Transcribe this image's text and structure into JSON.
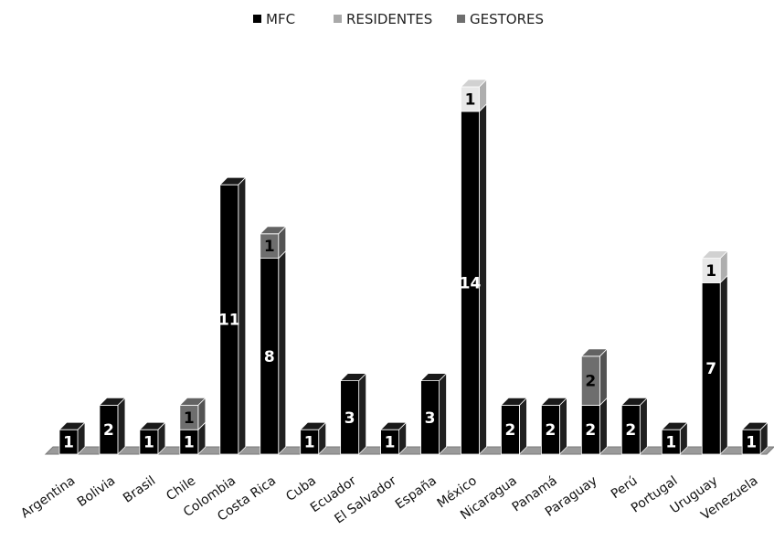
{
  "chart_data": {
    "type": "bar",
    "stacked": true,
    "style": "3d-column",
    "categories": [
      "Argentina",
      "Bolivia",
      "Brasil",
      "Chile",
      "Colombia",
      "Costa Rica",
      "Cuba",
      "Ecuador",
      "El Salvador",
      "España",
      "México",
      "Nicaragua",
      "Panamá",
      "Paraguay",
      "Perú",
      "Portugal",
      "Uruguay",
      "Venezuela"
    ],
    "series": [
      {
        "name": "MFC",
        "color": "#000000",
        "label_color": "#ffffff",
        "values": [
          1,
          2,
          1,
          1,
          11,
          8,
          1,
          3,
          1,
          3,
          14,
          2,
          2,
          2,
          2,
          1,
          7,
          1
        ]
      },
      {
        "name": "RESIDENTES",
        "color": "#e8e8e8",
        "label_color": "#000000",
        "values": [
          0,
          0,
          0,
          0,
          0,
          0,
          0,
          0,
          0,
          0,
          1,
          0,
          0,
          0,
          0,
          0,
          1,
          0
        ]
      },
      {
        "name": "GESTORES",
        "color": "#6e6e6e",
        "label_color": "#000000",
        "values": [
          0,
          0,
          0,
          1,
          0,
          1,
          0,
          0,
          0,
          0,
          0,
          0,
          0,
          2,
          0,
          0,
          0,
          0
        ]
      }
    ],
    "legend_position": "top-center",
    "grid": false,
    "y_axis_visible": false
  }
}
